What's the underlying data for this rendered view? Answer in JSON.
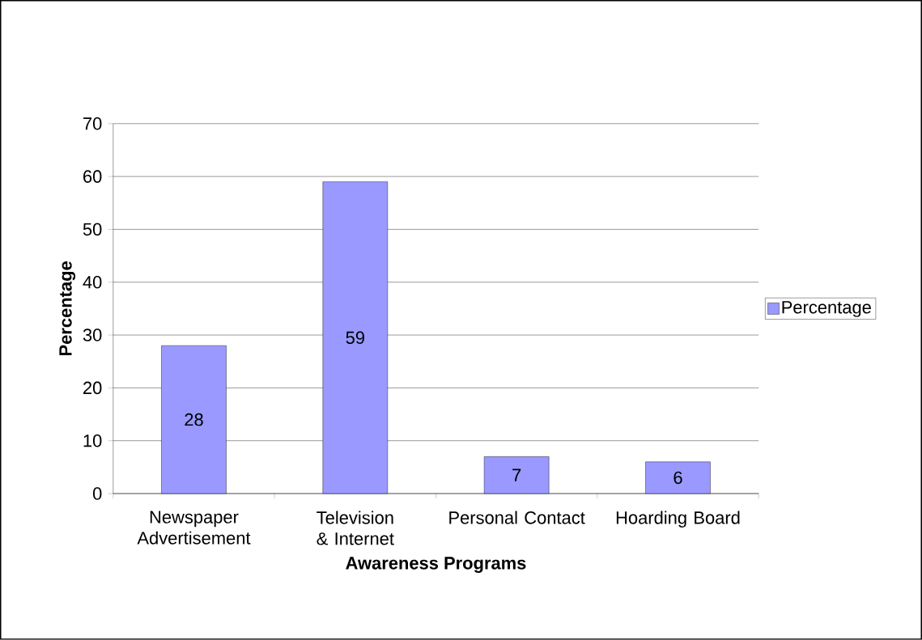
{
  "chart_data": {
    "type": "bar",
    "xlabel": "Awareness Programs",
    "ylabel": "Percentage",
    "categories": [
      "Newspaper Advertisement",
      "Television & Internet",
      "Personal Contact",
      "Hoarding Board"
    ],
    "series": [
      {
        "name": "Percentage",
        "color": "#9999ff",
        "values": [
          28,
          59,
          7,
          6
        ]
      }
    ],
    "ylim": [
      0,
      70
    ],
    "yticks": [
      0,
      10,
      20,
      30,
      40,
      50,
      60,
      70
    ],
    "grid": "y",
    "legend": "right",
    "data_labels": true
  }
}
